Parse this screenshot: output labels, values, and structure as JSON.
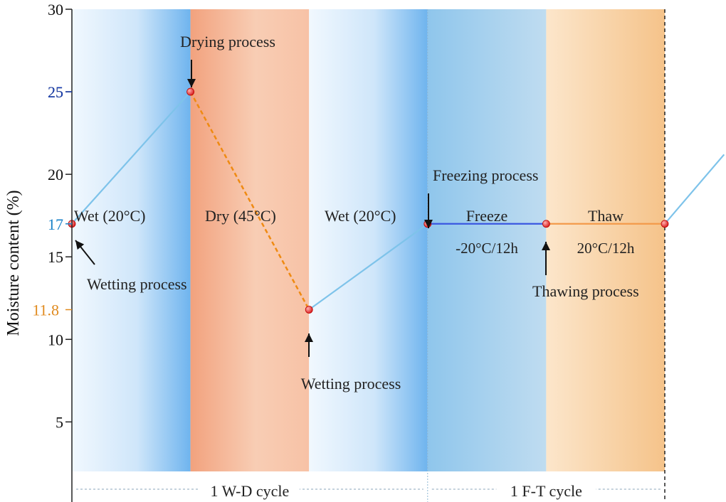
{
  "chart_data": {
    "type": "line",
    "ylabel": "Moisture content (%)",
    "ylim": [
      2,
      30
    ],
    "yticks": [
      5,
      10,
      15,
      20,
      25,
      30
    ],
    "highlight_ticks": [
      {
        "value": 25,
        "label": "25",
        "color": "#1a3fb0"
      },
      {
        "value": 17,
        "label": "17",
        "color": "#1a82c8"
      },
      {
        "value": 11.8,
        "label": "11.8",
        "color": "#e08a1e"
      }
    ],
    "xlim": [
      0,
      5.5
    ],
    "bands": [
      {
        "label": "Wet (20°C)",
        "x0": 0,
        "x1": 1,
        "kind": "wet"
      },
      {
        "label": "Dry (45°C)",
        "x0": 1,
        "x1": 2,
        "kind": "dry"
      },
      {
        "label": "Wet (20°C)",
        "x0": 2,
        "x1": 3,
        "kind": "wet"
      },
      {
        "label": "Freeze",
        "sublabel": "-20°C/12h",
        "x0": 3,
        "x1": 4,
        "kind": "freeze"
      },
      {
        "label": "Thaw",
        "sublabel": "20°C/12h",
        "x0": 4,
        "x1": 5,
        "kind": "thaw"
      }
    ],
    "series": [
      {
        "name": "wetting-1",
        "style": "solid",
        "color": "#7ec3ea",
        "x": [
          0,
          1
        ],
        "y": [
          17,
          25
        ]
      },
      {
        "name": "drying",
        "style": "dashed",
        "color": "#ef8a12",
        "x": [
          1,
          2
        ],
        "y": [
          25,
          11.8
        ]
      },
      {
        "name": "wetting-2",
        "style": "solid",
        "color": "#7ec3ea",
        "x": [
          2,
          3
        ],
        "y": [
          11.8,
          17
        ]
      },
      {
        "name": "freeze",
        "style": "solid",
        "color": "#3a57e0",
        "x": [
          3,
          4
        ],
        "y": [
          17,
          17
        ]
      },
      {
        "name": "thaw",
        "style": "solid",
        "color": "#f39a4a",
        "x": [
          4,
          5
        ],
        "y": [
          17,
          17
        ]
      },
      {
        "name": "wetting-3",
        "style": "solid",
        "color": "#7ec3ea",
        "x": [
          5,
          5.5
        ],
        "y": [
          17,
          21.2
        ]
      }
    ],
    "points": [
      {
        "x": 0,
        "y": 17
      },
      {
        "x": 1,
        "y": 25
      },
      {
        "x": 2,
        "y": 11.8
      },
      {
        "x": 3,
        "y": 17
      },
      {
        "x": 4,
        "y": 17
      },
      {
        "x": 5,
        "y": 17
      }
    ],
    "annotations": [
      {
        "text": "Drying process",
        "x": 1,
        "y": 25,
        "placement": "above"
      },
      {
        "text": "Wetting process",
        "x": 0,
        "y": 17,
        "placement": "below-right"
      },
      {
        "text": "Wetting process",
        "x": 2,
        "y": 11.8,
        "placement": "below"
      },
      {
        "text": "Freezing process",
        "x": 3,
        "y": 17,
        "placement": "above-right"
      },
      {
        "text": "Thawing process",
        "x": 4,
        "y": 17,
        "placement": "below"
      }
    ],
    "cycles": [
      {
        "label": "1 W-D cycle",
        "x0": 0,
        "x1": 3
      },
      {
        "label": "1 F-T cycle",
        "x0": 3,
        "x1": 5
      }
    ]
  }
}
